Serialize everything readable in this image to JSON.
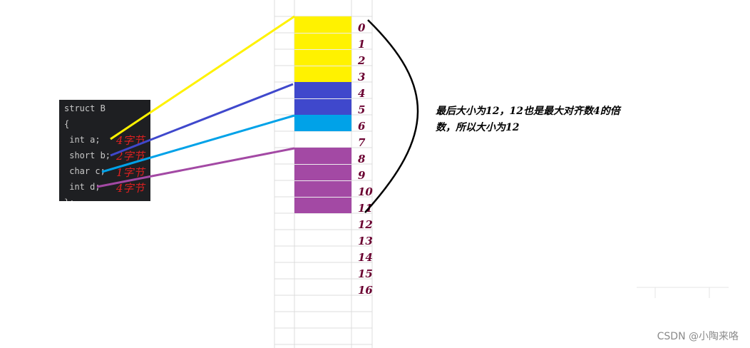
{
  "code": {
    "lines": [
      "struct B",
      "{",
      " int a;",
      " short b;",
      " char c;",
      " int d;",
      "};"
    ]
  },
  "member_sizes": [
    "4字节",
    "2字节",
    "1字节",
    "4字节"
  ],
  "memory": {
    "offsets": [
      "0",
      "1",
      "2",
      "3",
      "4",
      "5",
      "6",
      "7",
      "8",
      "9",
      "10",
      "11",
      "12",
      "13",
      "14",
      "15",
      "16"
    ],
    "cells": [
      {
        "offset_start": 0,
        "offset_end": 3,
        "member": "a",
        "color": "#fff200"
      },
      {
        "offset_start": 4,
        "offset_end": 5,
        "member": "b",
        "color": "#3f48cc"
      },
      {
        "offset_start": 6,
        "offset_end": 6,
        "member": "c",
        "color": "#00a2e8"
      },
      {
        "offset_start": 8,
        "offset_end": 11,
        "member": "d",
        "color": "#a349a4"
      }
    ]
  },
  "note": {
    "line1": "最后大小为12，12也是最大对齐数4的倍",
    "line2": "数，所以大小为12"
  },
  "watermark": "CSDN @小陶来咯"
}
